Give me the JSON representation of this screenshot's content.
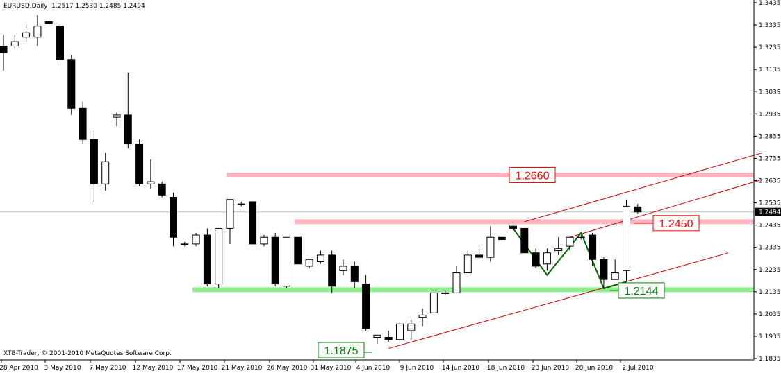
{
  "header": {
    "symbol_tf": "EURUSD,Daily",
    "ohlc": "1.2517 1.2530 1.2485 1.2494"
  },
  "footer": {
    "copyright": "XTB-Trader, © 2001-2010 MetaQuotes Software Corp."
  },
  "colors": {
    "bull_body": "#ffffff",
    "bear_body": "#000000",
    "resistance": "#ffb6c1",
    "support": "#90ee90",
    "channel": "#cc0000",
    "pattern": "#006400",
    "label_red_text": "#ff0000",
    "label_green_text": "#008000"
  },
  "chart_data": {
    "type": "candlestick",
    "symbol": "EURUSD",
    "timeframe": "Daily",
    "ylim": [
      1.1835,
      1.3445
    ],
    "y_ticks": [
      "1.3435",
      "1.3335",
      "1.3235",
      "1.3135",
      "1.3035",
      "1.2935",
      "1.2835",
      "1.2735",
      "1.2635",
      "1.2535",
      "1.2435",
      "1.2335",
      "1.2235",
      "1.2135",
      "1.2035",
      "1.1935",
      "1.1835"
    ],
    "x_ticks": [
      "28 Apr 2010",
      "3 May 2010",
      "7 May 2010",
      "12 May 2010",
      "17 May 2010",
      "21 May 2010",
      "26 May 2010",
      "31 May 2010",
      "4 Jun 2010",
      "9 Jun 2010",
      "14 Jun 2010",
      "18 Jun 2010",
      "23 Jun 2010",
      "28 Jun 2010",
      "2 Jul 2010"
    ],
    "grid": false,
    "last_price": "1.2494",
    "candles": [
      {
        "o": 1.324,
        "h": 1.329,
        "l": 1.313,
        "c": 1.321
      },
      {
        "o": 1.324,
        "h": 1.329,
        "l": 1.323,
        "c": 1.326
      },
      {
        "o": 1.328,
        "h": 1.334,
        "l": 1.326,
        "c": 1.33
      },
      {
        "o": 1.328,
        "h": 1.338,
        "l": 1.324,
        "c": 1.333
      },
      {
        "o": 1.335,
        "h": 1.335,
        "l": 1.334,
        "c": 1.334
      },
      {
        "o": 1.333,
        "h": 1.334,
        "l": 1.315,
        "c": 1.318
      },
      {
        "o": 1.318,
        "h": 1.32,
        "l": 1.293,
        "c": 1.296
      },
      {
        "o": 1.296,
        "h": 1.299,
        "l": 1.28,
        "c": 1.282
      },
      {
        "o": 1.282,
        "h": 1.286,
        "l": 1.254,
        "c": 1.262
      },
      {
        "o": 1.262,
        "h": 1.276,
        "l": 1.259,
        "c": 1.272
      },
      {
        "o": 1.292,
        "h": 1.294,
        "l": 1.288,
        "c": 1.293
      },
      {
        "o": 1.293,
        "h": 1.312,
        "l": 1.278,
        "c": 1.28
      },
      {
        "o": 1.28,
        "h": 1.282,
        "l": 1.261,
        "c": 1.262
      },
      {
        "o": 1.262,
        "h": 1.273,
        "l": 1.26,
        "c": 1.263
      },
      {
        "o": 1.262,
        "h": 1.263,
        "l": 1.256,
        "c": 1.257
      },
      {
        "o": 1.256,
        "h": 1.258,
        "l": 1.234,
        "c": 1.238
      },
      {
        "o": 1.235,
        "h": 1.236,
        "l": 1.234,
        "c": 1.235
      },
      {
        "o": 1.235,
        "h": 1.24,
        "l": 1.234,
        "c": 1.239
      },
      {
        "o": 1.239,
        "h": 1.242,
        "l": 1.216,
        "c": 1.217
      },
      {
        "o": 1.217,
        "h": 1.242,
        "l": 1.215,
        "c": 1.242
      },
      {
        "o": 1.242,
        "h": 1.255,
        "l": 1.235,
        "c": 1.255
      },
      {
        "o": 1.253,
        "h": 1.254,
        "l": 1.252,
        "c": 1.253
      },
      {
        "o": 1.254,
        "h": 1.254,
        "l": 1.235,
        "c": 1.235
      },
      {
        "o": 1.235,
        "h": 1.239,
        "l": 1.234,
        "c": 1.238
      },
      {
        "o": 1.238,
        "h": 1.24,
        "l": 1.216,
        "c": 1.217
      },
      {
        "o": 1.216,
        "h": 1.238,
        "l": 1.215,
        "c": 1.238
      },
      {
        "o": 1.238,
        "h": 1.238,
        "l": 1.226,
        "c": 1.226
      },
      {
        "o": 1.225,
        "h": 1.228,
        "l": 1.224,
        "c": 1.228
      },
      {
        "o": 1.227,
        "h": 1.232,
        "l": 1.226,
        "c": 1.23
      },
      {
        "o": 1.23,
        "h": 1.232,
        "l": 1.213,
        "c": 1.216
      },
      {
        "o": 1.223,
        "h": 1.228,
        "l": 1.221,
        "c": 1.225
      },
      {
        "o": 1.225,
        "h": 1.227,
        "l": 1.215,
        "c": 1.218
      },
      {
        "o": 1.217,
        "h": 1.221,
        "l": 1.196,
        "c": 1.197
      },
      {
        "o": 1.193,
        "h": 1.194,
        "l": 1.19,
        "c": 1.194
      },
      {
        "o": 1.193,
        "h": 1.196,
        "l": 1.191,
        "c": 1.192
      },
      {
        "o": 1.192,
        "h": 1.2,
        "l": 1.192,
        "c": 1.199
      },
      {
        "o": 1.196,
        "h": 1.201,
        "l": 1.192,
        "c": 1.199
      },
      {
        "o": 1.202,
        "h": 1.206,
        "l": 1.198,
        "c": 1.203
      },
      {
        "o": 1.204,
        "h": 1.214,
        "l": 1.204,
        "c": 1.213
      },
      {
        "o": 1.213,
        "h": 1.214,
        "l": 1.212,
        "c": 1.213
      },
      {
        "o": 1.213,
        "h": 1.225,
        "l": 1.213,
        "c": 1.222
      },
      {
        "o": 1.222,
        "h": 1.232,
        "l": 1.222,
        "c": 1.23
      },
      {
        "o": 1.23,
        "h": 1.233,
        "l": 1.228,
        "c": 1.229
      },
      {
        "o": 1.229,
        "h": 1.243,
        "l": 1.227,
        "c": 1.238
      },
      {
        "o": 1.238,
        "h": 1.238,
        "l": 1.237,
        "c": 1.237
      },
      {
        "o": 1.243,
        "h": 1.245,
        "l": 1.241,
        "c": 1.242
      },
      {
        "o": 1.242,
        "h": 1.242,
        "l": 1.231,
        "c": 1.231
      },
      {
        "o": 1.231,
        "h": 1.233,
        "l": 1.224,
        "c": 1.225
      },
      {
        "o": 1.226,
        "h": 1.233,
        "l": 1.223,
        "c": 1.231
      },
      {
        "o": 1.232,
        "h": 1.238,
        "l": 1.23,
        "c": 1.233
      },
      {
        "o": 1.234,
        "h": 1.238,
        "l": 1.232,
        "c": 1.238
      },
      {
        "o": 1.238,
        "h": 1.239,
        "l": 1.237,
        "c": 1.238
      },
      {
        "o": 1.239,
        "h": 1.24,
        "l": 1.225,
        "c": 1.228
      },
      {
        "o": 1.228,
        "h": 1.229,
        "l": 1.215,
        "c": 1.219
      },
      {
        "o": 1.219,
        "h": 1.228,
        "l": 1.219,
        "c": 1.222
      },
      {
        "o": 1.223,
        "h": 1.255,
        "l": 1.218,
        "c": 1.252
      },
      {
        "o": 1.2517,
        "h": 1.253,
        "l": 1.2485,
        "c": 1.2494
      }
    ],
    "horizontal_levels": [
      {
        "id": "res-1",
        "price": 1.266,
        "label": "1.2660",
        "color": "resistance",
        "from_index": 20
      },
      {
        "id": "res-2",
        "price": 1.245,
        "label": "1.2450",
        "color": "resistance",
        "from_index": 26
      },
      {
        "id": "sup-1",
        "price": 1.2144,
        "label": "1.2144",
        "color": "support",
        "from_index": 17
      }
    ],
    "point_labels": [
      {
        "id": "low-1",
        "price": 1.1875,
        "label": "1.1875",
        "color": "support"
      }
    ],
    "trendlines": [
      {
        "id": "channel-upper-1",
        "x0": 46,
        "y0": 1.245,
        "x1": 67,
        "y1": 1.276
      },
      {
        "id": "channel-upper-2",
        "x0": 50,
        "y0": 1.238,
        "x1": 67,
        "y1": 1.264
      },
      {
        "id": "channel-lower",
        "x0": 34,
        "y0": 1.188,
        "x1": 64,
        "y1": 1.231
      }
    ],
    "pattern_line": [
      {
        "x": 45,
        "y": 1.242
      },
      {
        "x": 48,
        "y": 1.221
      },
      {
        "x": 51,
        "y": 1.24
      },
      {
        "x": 53,
        "y": 1.215
      },
      {
        "x": 55,
        "y": 1.218
      }
    ]
  }
}
